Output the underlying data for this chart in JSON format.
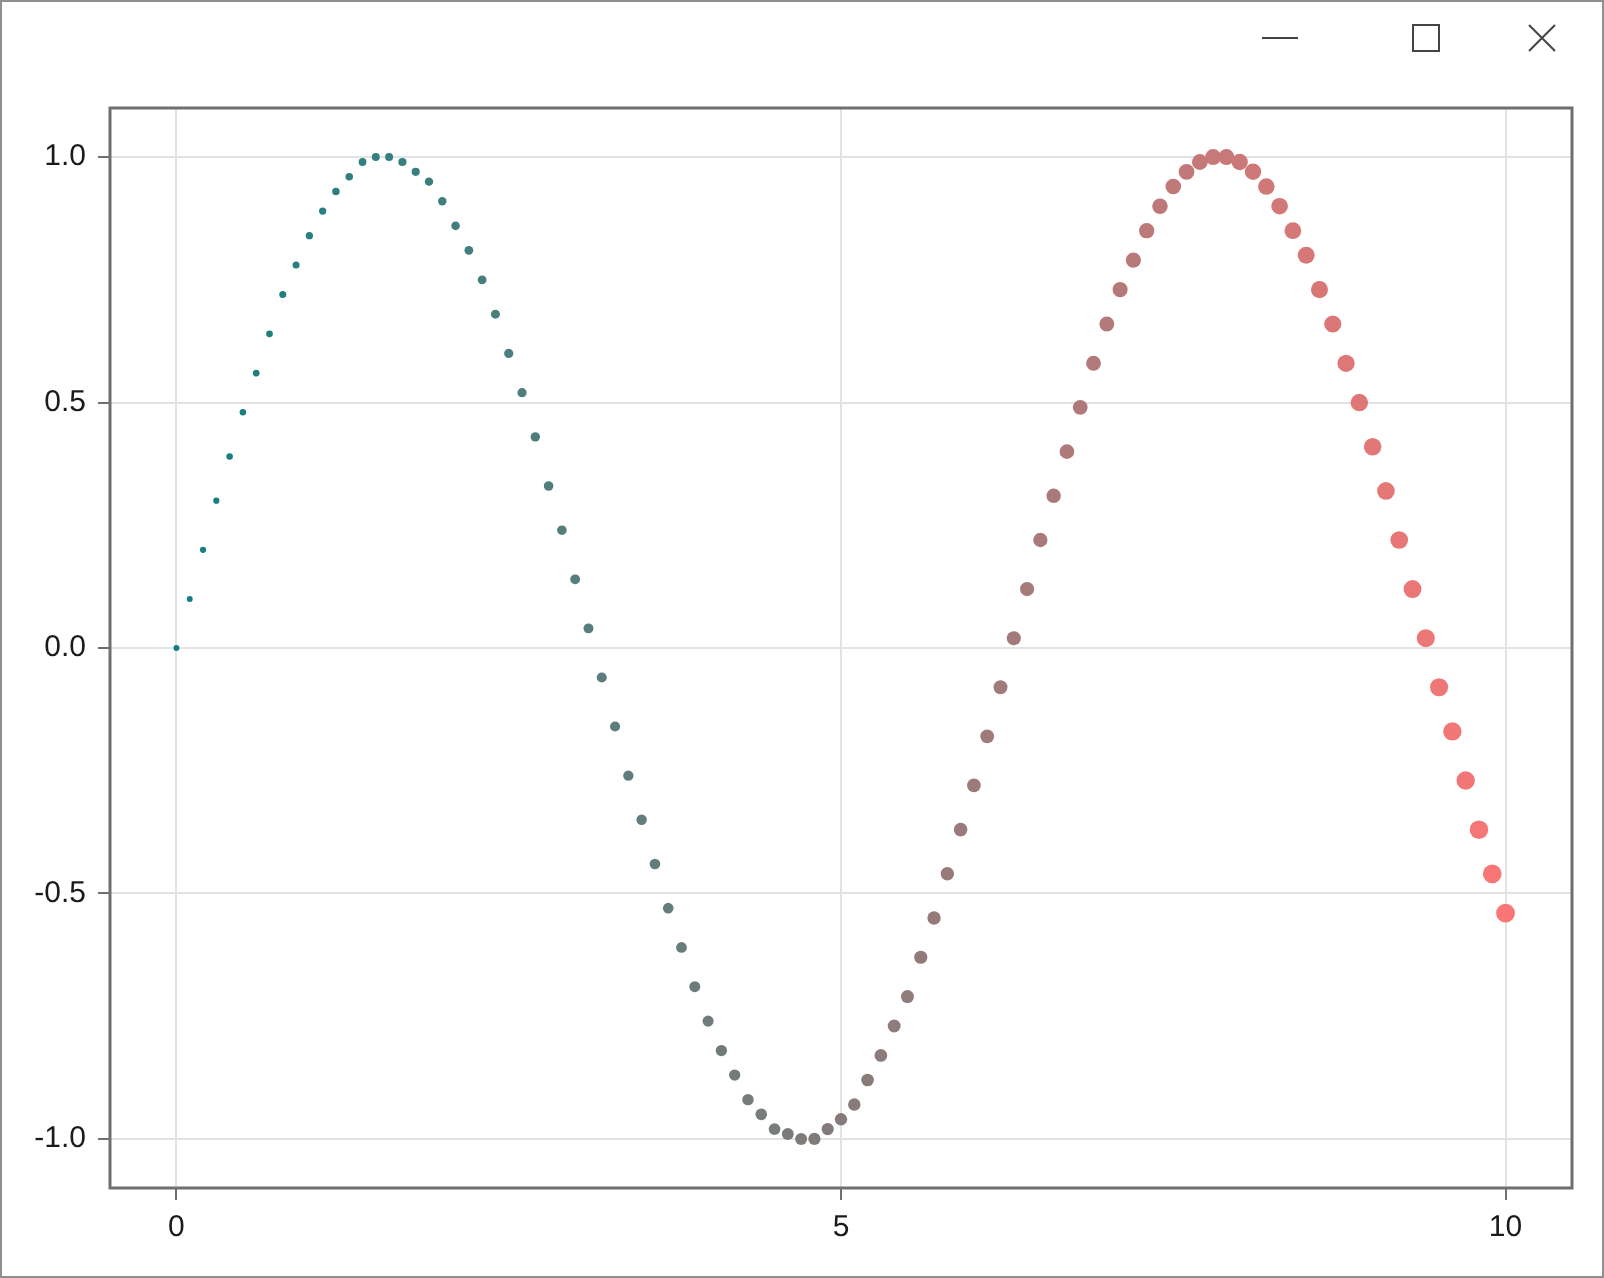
{
  "chart_data": {
    "type": "bubble",
    "x": [
      0,
      0.1,
      0.2,
      0.3,
      0.4,
      0.5,
      0.6,
      0.7,
      0.8,
      0.9,
      1,
      1.1,
      1.2,
      1.3,
      1.4,
      1.5,
      1.6,
      1.7,
      1.8,
      1.9,
      2,
      2.1,
      2.2,
      2.3,
      2.4,
      2.5,
      2.6,
      2.7,
      2.8,
      2.9,
      3,
      3.1,
      3.2,
      3.3,
      3.4,
      3.5,
      3.6,
      3.7,
      3.8,
      3.9,
      4,
      4.1,
      4.2,
      4.3,
      4.4,
      4.5,
      4.6,
      4.7,
      4.8,
      4.9,
      5,
      5.1,
      5.2,
      5.3,
      5.4,
      5.5,
      5.6,
      5.7,
      5.8,
      5.9,
      6,
      6.1,
      6.2,
      6.3,
      6.4,
      6.5,
      6.6,
      6.7,
      6.8,
      6.9,
      7,
      7.1,
      7.2,
      7.3,
      7.4,
      7.5,
      7.6,
      7.7,
      7.8,
      7.9,
      8,
      8.1,
      8.2,
      8.3,
      8.4,
      8.5,
      8.6,
      8.7,
      8.8,
      8.9,
      9,
      9.1,
      9.2,
      9.3,
      9.4,
      9.5,
      9.6,
      9.7,
      9.8,
      9.9,
      10
    ],
    "values": [
      0,
      0.1,
      0.2,
      0.3,
      0.39,
      0.48,
      0.56,
      0.64,
      0.72,
      0.78,
      0.84,
      0.89,
      0.93,
      0.96,
      0.99,
      1,
      1,
      0.99,
      0.97,
      0.95,
      0.91,
      0.86,
      0.81,
      0.75,
      0.68,
      0.6,
      0.52,
      0.43,
      0.33,
      0.24,
      0.14,
      0.04,
      -0.06,
      -0.16,
      -0.26,
      -0.35,
      -0.44,
      -0.53,
      -0.61,
      -0.69,
      -0.76,
      -0.82,
      -0.87,
      -0.92,
      -0.95,
      -0.98,
      -0.99,
      -1,
      -1,
      -0.98,
      -0.96,
      -0.93,
      -0.88,
      -0.83,
      -0.77,
      -0.71,
      -0.63,
      -0.55,
      -0.46,
      -0.37,
      -0.28,
      -0.18,
      -0.08,
      0.02,
      0.12,
      0.22,
      0.31,
      0.4,
      0.49,
      0.58,
      0.66,
      0.73,
      0.79,
      0.85,
      0.9,
      0.94,
      0.97,
      0.99,
      1,
      1,
      0.99,
      0.97,
      0.94,
      0.9,
      0.85,
      0.8,
      0.73,
      0.66,
      0.58,
      0.5,
      0.41,
      0.32,
      0.22,
      0.12,
      0.02,
      -0.08,
      -0.17,
      -0.27,
      -0.37,
      -0.46,
      -0.54
    ],
    "sizes": [
      0.1,
      0.1,
      0.11,
      0.11,
      0.12,
      0.12,
      0.13,
      0.13,
      0.14,
      0.14,
      0.15,
      0.15,
      0.16,
      0.16,
      0.17,
      0.18,
      0.18,
      0.19,
      0.19,
      0.2,
      0.2,
      0.21,
      0.22,
      0.22,
      0.23,
      0.24,
      0.24,
      0.25,
      0.26,
      0.26,
      0.27,
      0.28,
      0.29,
      0.29,
      0.3,
      0.31,
      0.32,
      0.32,
      0.33,
      0.34,
      0.35,
      0.36,
      0.36,
      0.37,
      0.38,
      0.39,
      0.4,
      0.41,
      0.42,
      0.42,
      0.43,
      0.44,
      0.45,
      0.46,
      0.47,
      0.48,
      0.49,
      0.5,
      0.51,
      0.52,
      0.53,
      0.54,
      0.55,
      0.56,
      0.57,
      0.58,
      0.59,
      0.6,
      0.61,
      0.62,
      0.63,
      0.64,
      0.65,
      0.66,
      0.68,
      0.69,
      0.7,
      0.71,
      0.72,
      0.73,
      0.75,
      0.76,
      0.77,
      0.78,
      0.79,
      0.81,
      0.82,
      0.83,
      0.84,
      0.86,
      0.87,
      0.88,
      0.89,
      0.91,
      0.92,
      0.93,
      0.95,
      0.96,
      0.97,
      0.99,
      1
    ],
    "colors": [
      "#108080",
      "#128080",
      "#158080",
      "#178080",
      "#198080",
      "#1c8080",
      "#1e7f7f",
      "#207f7f",
      "#237f7f",
      "#257f7f",
      "#277f7f",
      "#2a7f7f",
      "#2c7f7f",
      "#2e7f7f",
      "#317f7f",
      "#337f7f",
      "#357e7e",
      "#387e7e",
      "#3a7e7e",
      "#3c7e7e",
      "#3f7e7e",
      "#417e7e",
      "#437e7e",
      "#467e7e",
      "#487e7e",
      "#4b7e7e",
      "#4d7d7d",
      "#4f7d7d",
      "#527d7d",
      "#547d7d",
      "#567d7d",
      "#597d7d",
      "#5b7d7d",
      "#5d7d7d",
      "#607d7d",
      "#627d7d",
      "#647c7c",
      "#677c7c",
      "#697c7c",
      "#6b7c7c",
      "#6e7c7c",
      "#707c7c",
      "#727c7c",
      "#757c7c",
      "#777c7c",
      "#797c7c",
      "#7c7b7b",
      "#7e7b7b",
      "#807b7b",
      "#837b7b",
      "#857b7b",
      "#877b7b",
      "#8a7b7b",
      "#8c7b7b",
      "#8e7b7b",
      "#917b7b",
      "#937a7a",
      "#957a7a",
      "#987a7a",
      "#9a7a7a",
      "#9c7a7a",
      "#9f7a7a",
      "#a17a7a",
      "#a37a7a",
      "#a67a7a",
      "#a87a7a",
      "#aa7979",
      "#ad7979",
      "#af7979",
      "#b17979",
      "#b47979",
      "#b67979",
      "#b87979",
      "#bb7979",
      "#bd7979",
      "#c07979",
      "#c27878",
      "#c47878",
      "#c77878",
      "#c97878",
      "#cb7878",
      "#ce7878",
      "#d07878",
      "#d27878",
      "#d57878",
      "#d77878",
      "#d97777",
      "#dc7777",
      "#de7777",
      "#e07777",
      "#e37777",
      "#e57777",
      "#e77777",
      "#ea7777",
      "#ec7777",
      "#ee7777",
      "#f17676",
      "#f37676",
      "#f57676",
      "#f87676",
      "#fa7676"
    ],
    "xlim": [
      -0.5,
      10.5
    ],
    "ylim": [
      -1.1,
      1.1
    ],
    "xticks": [
      0,
      5,
      10
    ],
    "yticks": [
      {
        "value": -1,
        "label": "-1.0"
      },
      {
        "value": -0.5,
        "label": "-0.5"
      },
      {
        "value": 0,
        "label": "0.0"
      },
      {
        "value": 0.5,
        "label": "0.5"
      },
      {
        "value": 1,
        "label": "1.0"
      }
    ],
    "grid": true,
    "marker": "circle"
  }
}
